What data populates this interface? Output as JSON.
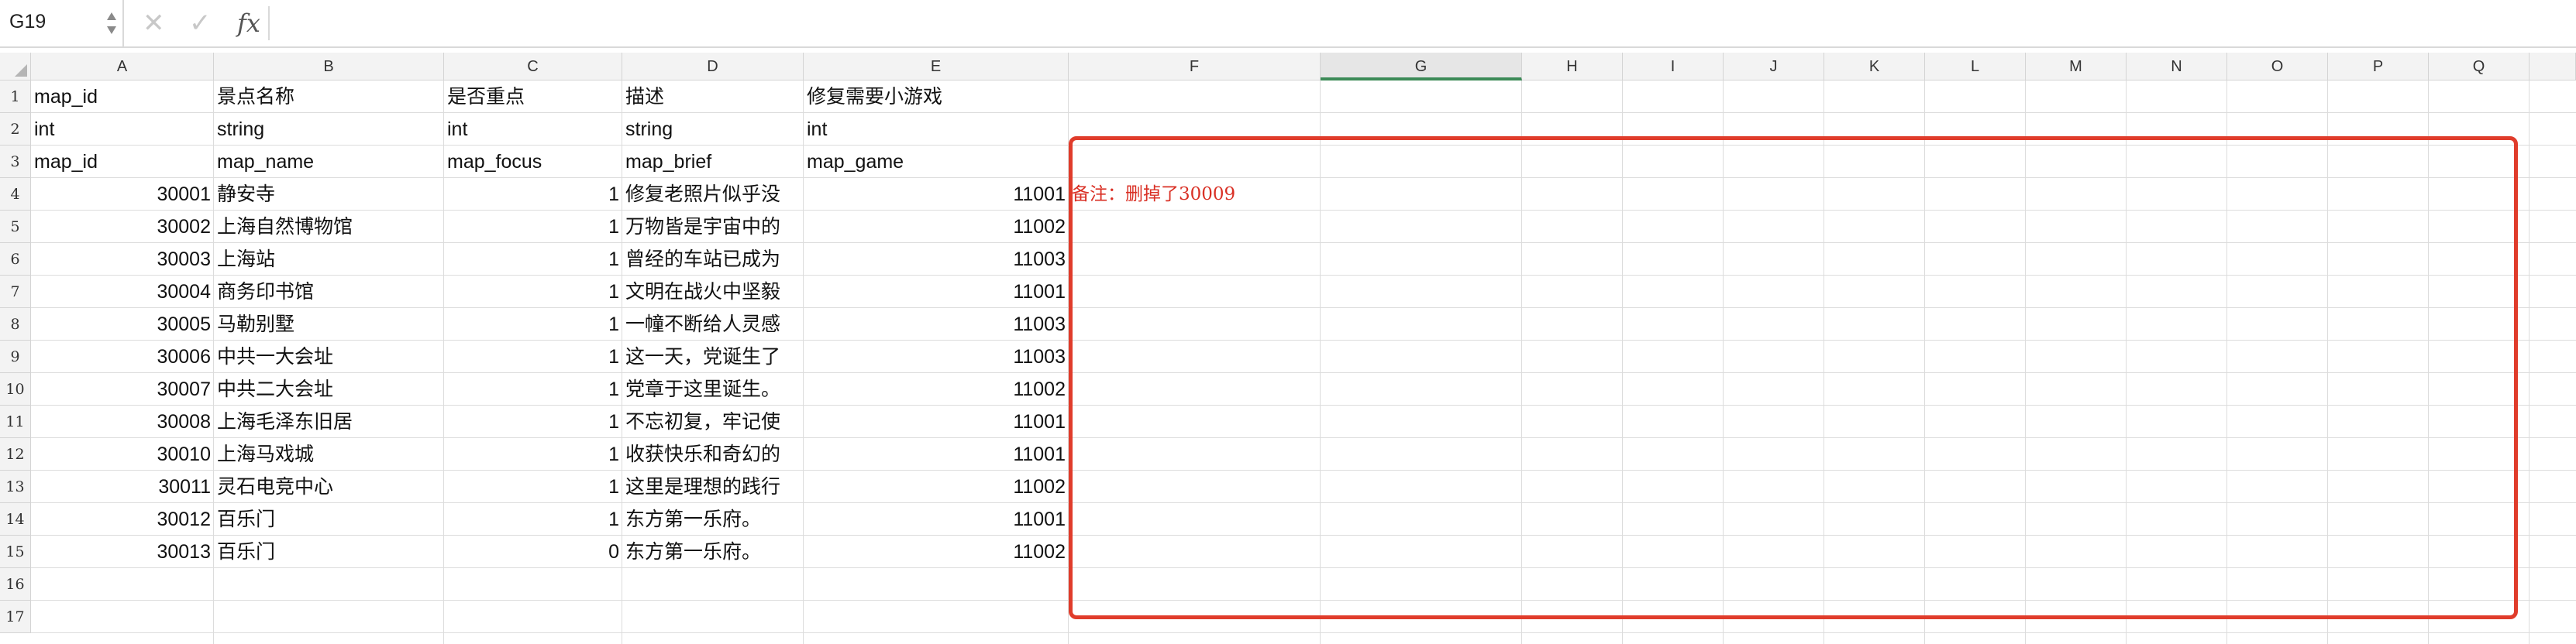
{
  "formula_bar": {
    "name_box": "G19",
    "cancel_icon": "close-icon",
    "confirm_icon": "check-icon",
    "fx_label": "fx",
    "formula_value": ""
  },
  "columns": [
    "A",
    "B",
    "C",
    "D",
    "E",
    "F",
    "G",
    "H",
    "I",
    "J",
    "K",
    "L",
    "M",
    "N",
    "O",
    "P",
    "Q"
  ],
  "active_column": "G",
  "rows": [
    "1",
    "2",
    "3",
    "4",
    "5",
    "6",
    "7",
    "8",
    "9",
    "10",
    "11",
    "12",
    "13",
    "14",
    "15",
    "16",
    "17"
  ],
  "sheet": {
    "headers": [
      [
        "map_id",
        "景点名称",
        "是否重点",
        "描述",
        "修复需要小游戏"
      ],
      [
        "int",
        "string",
        "int",
        "string",
        "int"
      ],
      [
        "map_id",
        "map_name",
        "map_focus",
        "map_brief",
        "map_game"
      ]
    ],
    "records": [
      [
        "30001",
        "静安寺",
        "1",
        "修复老照片似乎没",
        "11001"
      ],
      [
        "30002",
        "上海自然博物馆",
        "1",
        "万物皆是宇宙中的",
        "11002"
      ],
      [
        "30003",
        "上海站",
        "1",
        "曾经的车站已成为",
        "11003"
      ],
      [
        "30004",
        "商务印书馆",
        "1",
        "文明在战火中坚毅",
        "11001"
      ],
      [
        "30005",
        "马勒别墅",
        "1",
        "一幢不断给人灵感",
        "11003"
      ],
      [
        "30006",
        "中共一大会址",
        "1",
        "这一天，党诞生了",
        "11003"
      ],
      [
        "30007",
        "中共二大会址",
        "1",
        "党章于这里诞生。",
        "11002"
      ],
      [
        "30008",
        "上海毛泽东旧居",
        "1",
        "不忘初复，牢记使",
        "11001"
      ],
      [
        "30010",
        "上海马戏城",
        "1",
        "收获快乐和奇幻的",
        "11001"
      ],
      [
        "30011",
        "灵石电竞中心",
        "1",
        "这里是理想的践行",
        "11002"
      ],
      [
        "30012",
        "百乐门",
        "1",
        "东方第一乐府。",
        "11001"
      ],
      [
        "30013",
        "百乐门",
        "0",
        "东方第一乐府。",
        "11002"
      ]
    ],
    "note": "备注：删掉了30009"
  },
  "colors": {
    "highlight_border": "#e03c2b",
    "note_text": "#d93025",
    "active_col_accent": "#3c8a57"
  }
}
